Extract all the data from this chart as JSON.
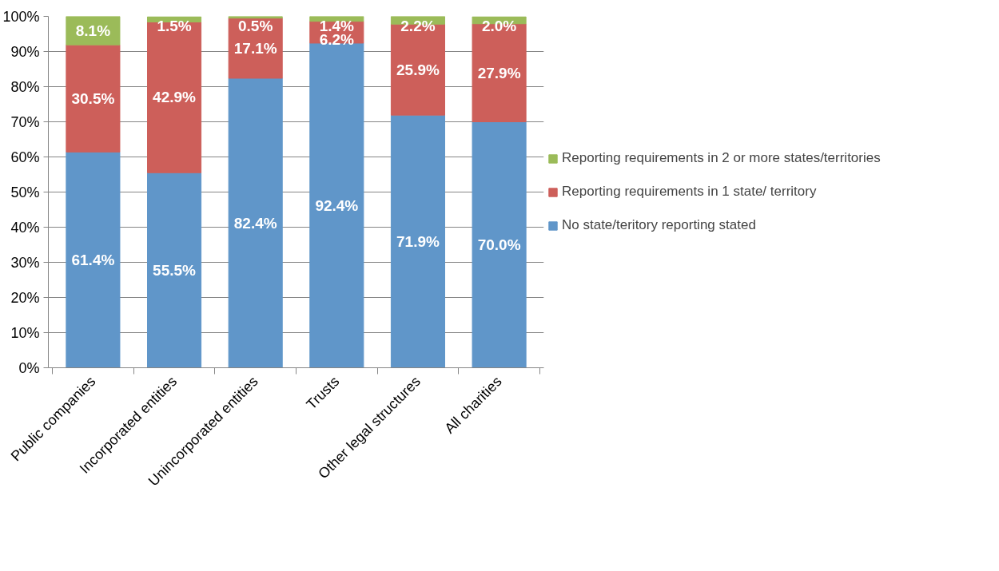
{
  "chart_data": {
    "type": "bar",
    "stacked": true,
    "categories": [
      "Public companies",
      "Incorporated entities",
      "Unincorporated entities",
      "Trusts",
      "Other legal structures",
      "All charities"
    ],
    "series": [
      {
        "name": "No state/teritory reporting stated",
        "color": "#6096c9",
        "values": [
          61.4,
          55.5,
          82.4,
          92.4,
          71.9,
          70.0
        ],
        "value_labels": [
          "61.4%",
          "55.5%",
          "82.4%",
          "92.4%",
          "71.9%",
          "70.0%"
        ]
      },
      {
        "name": "Reporting requirements in 1 state/ territory",
        "color": "#cd5f5a",
        "values": [
          30.5,
          42.9,
          17.1,
          6.2,
          25.9,
          27.9
        ],
        "value_labels": [
          "30.5%",
          "42.9%",
          "17.1%",
          "6.2%",
          "25.9%",
          "27.9%"
        ]
      },
      {
        "name": "Reporting requirements in 2 or more states/territories",
        "color": "#9bbb59",
        "values": [
          8.1,
          1.5,
          0.5,
          1.4,
          2.2,
          2.0
        ],
        "value_labels": [
          "8.1%",
          "1.5%",
          "0.5%",
          "1.4%",
          "2.2%",
          "2.0%"
        ]
      }
    ],
    "ylim": [
      0,
      100
    ],
    "yticks": [
      {
        "value": 0,
        "label": "0%"
      },
      {
        "value": 10,
        "label": "10%"
      },
      {
        "value": 20,
        "label": "20%"
      },
      {
        "value": 30,
        "label": "30%"
      },
      {
        "value": 40,
        "label": "40%"
      },
      {
        "value": 50,
        "label": "50%"
      },
      {
        "value": 60,
        "label": "60%"
      },
      {
        "value": 70,
        "label": "70%"
      },
      {
        "value": 80,
        "label": "80%"
      },
      {
        "value": 90,
        "label": "90%"
      },
      {
        "value": 100,
        "label": "100%"
      }
    ],
    "grid": "y",
    "legend": "right"
  }
}
